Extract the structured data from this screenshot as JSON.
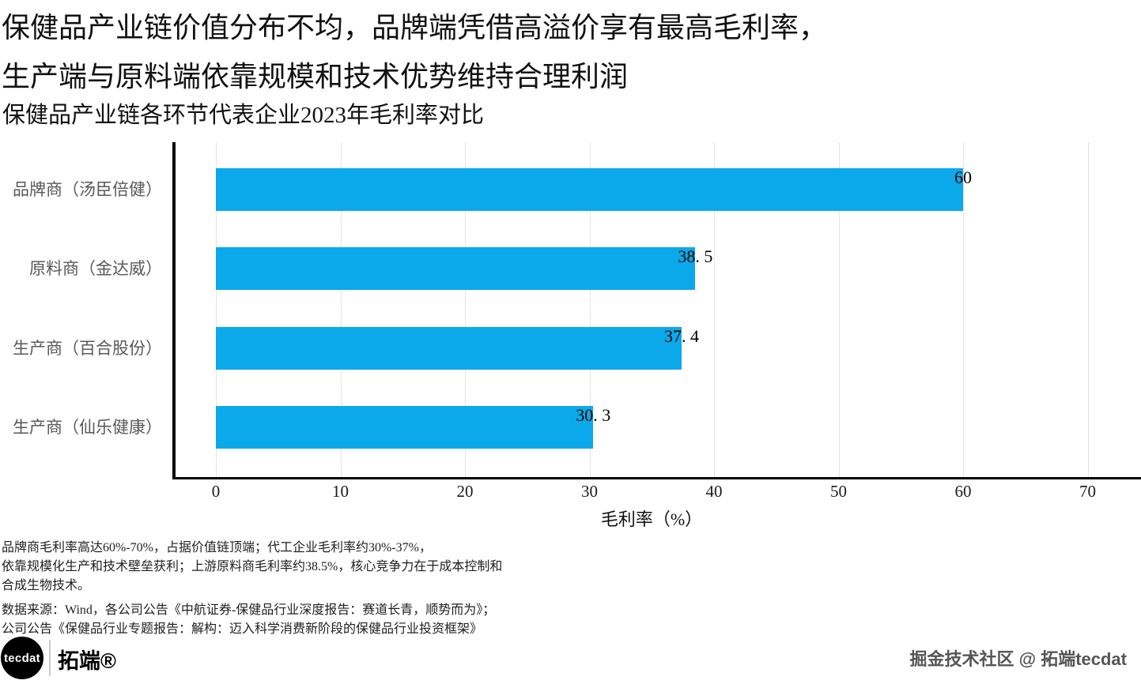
{
  "header": {
    "title_line1": "保健品产业链价值分布不均，品牌端凭借高溢价享有最高毛利率，",
    "title_line2": "生产端与原料端依靠规模和技术优势维持合理利润",
    "subtitle": "保健品产业链各环节代表企业2023年毛利率对比"
  },
  "chart_data": {
    "type": "bar",
    "orientation": "horizontal",
    "title": "保健品产业链各环节代表企业2023年毛利率对比",
    "categories": [
      "品牌商（汤臣倍健）",
      "原料商（金达威）",
      "生产商（百合股份）",
      "生产商（仙乐健康）"
    ],
    "values": [
      60,
      38.5,
      37.4,
      30.3
    ],
    "value_labels": [
      "60",
      "38. 5",
      "37. 4",
      "30. 3"
    ],
    "xlabel": "毛利率（%）",
    "ylabel": "",
    "xlim": [
      0,
      70
    ],
    "xticks": [
      0,
      10,
      20,
      30,
      40,
      50,
      60,
      70
    ],
    "bar_color": "#0ba9ea",
    "grid": true,
    "legend": "none"
  },
  "footnotes": {
    "lines": [
      "品牌商毛利率高达60%-70%，占据价值链顶端；代工企业毛利率约30%-37%，",
      "依靠规模化生产和技术壁垒获利；上游原料商毛利率约38.5%，核心竞争力在于成本控制和",
      "合成生物技术。"
    ],
    "sources": [
      "数据来源：Wind，各公司公告《中航证券-保健品行业深度报告：赛道长青，顺势而为》；",
      "公司公告《保健品行业专题报告：解构：迈入科学消费新阶段的保健品行业投资框架》"
    ]
  },
  "footer": {
    "logo_text": "tecdat",
    "brand_cn": "拓端®",
    "watermark": "掘金技术社区 @ 拓端tecdat"
  }
}
